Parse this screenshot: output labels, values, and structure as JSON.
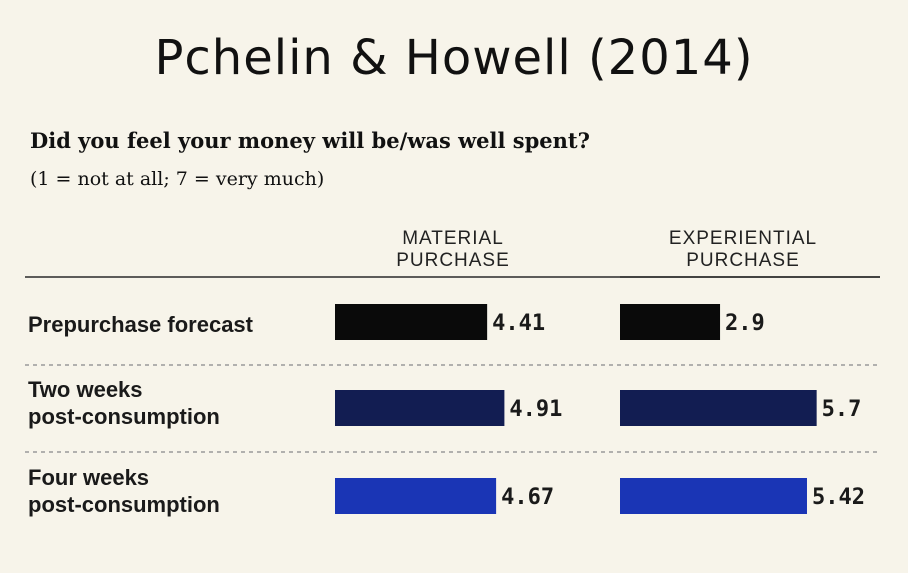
{
  "title": "Pchelin & Howell (2014)",
  "question": "Did you feel your money will be/was well spent?",
  "scale_note": "(1 = not at all; 7 = very much)",
  "columns": [
    {
      "line1": "MATERIAL",
      "line2": "PURCHASE"
    },
    {
      "line1": "EXPERIENTIAL",
      "line2": "PURCHASE"
    }
  ],
  "rows": [
    {
      "line1": "Prepurchase forecast",
      "line2": ""
    },
    {
      "line1": "Two weeks",
      "line2": "post-consumption"
    },
    {
      "line1": "Four weeks",
      "line2": "post-consumption"
    }
  ],
  "colors": {
    "background": "#f7f4ea",
    "prepurchase": "#0a0a0a",
    "two_weeks": "#121d52",
    "four_weeks": "#1a35b5",
    "divider": "#9a9a9a"
  },
  "chart_data": {
    "type": "bar",
    "orientation": "horizontal",
    "categories": [
      "Prepurchase forecast",
      "Two weeks post-consumption",
      "Four weeks post-consumption"
    ],
    "series": [
      {
        "name": "MATERIAL PURCHASE",
        "values": [
          4.41,
          4.91,
          4.67
        ],
        "labels": [
          "4.41",
          "4.91",
          "4.67"
        ]
      },
      {
        "name": "EXPERIENTIAL PURCHASE",
        "values": [
          2.9,
          5.7,
          5.42
        ],
        "labels": [
          "2.9",
          "5.7",
          "5.42"
        ]
      }
    ],
    "title": "Did you feel your money will be/was well spent?",
    "subtitle": "(1 = not at all; 7 = very much)",
    "xlim": [
      0,
      7
    ],
    "grid": false,
    "legend": "none"
  }
}
